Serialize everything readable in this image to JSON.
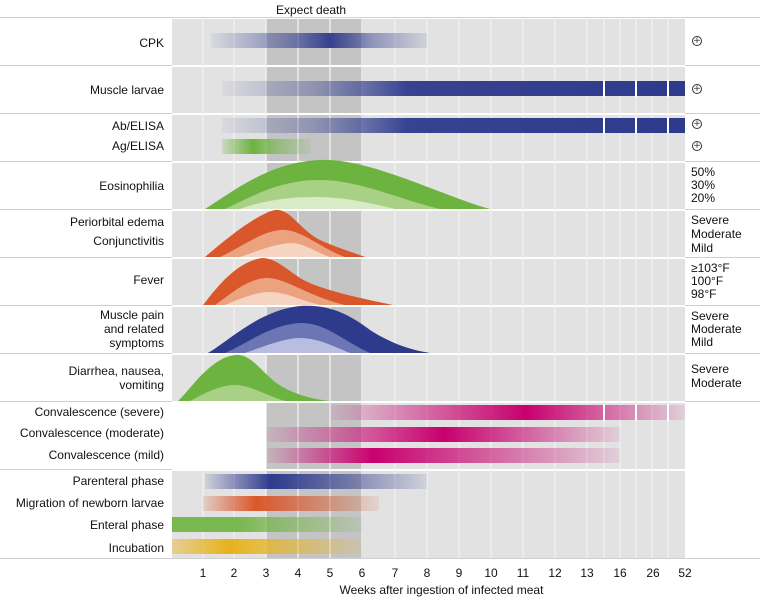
{
  "header": {
    "expect_death": "Expect death"
  },
  "xaxis": {
    "title": "Weeks after ingestion of infected meat",
    "ticks": [
      "1",
      "2",
      "3",
      "4",
      "5",
      "6",
      "7",
      "8",
      "9",
      "10",
      "11",
      "12",
      "13",
      "16",
      "26",
      "52"
    ]
  },
  "rows": {
    "cpk": "CPK",
    "muscle_larvae": "Muscle larvae",
    "ab_elisa": "Ab/ELISA",
    "ag_elisa": "Ag/ELISA",
    "eosinophilia": "Eosinophilia",
    "periorbital": "Periorbital edema",
    "conjunctivitis": "Conjunctivitis",
    "fever": "Fever",
    "muscle_pain_1": "Muscle pain",
    "muscle_pain_2": "and related",
    "muscle_pain_3": "symptoms",
    "diarrhea_1": "Diarrhea, nausea,",
    "diarrhea_2": "vomiting",
    "conv_severe": "Convalescence (severe)",
    "conv_moderate": "Convalescence (moderate)",
    "conv_mild": "Convalescence (mild)",
    "parenteral": "Parenteral phase",
    "migration": "Migration of newborn larvae",
    "enteral": "Enteral phase",
    "incubation": "Incubation"
  },
  "legend": {
    "eos": [
      "50%",
      "30%",
      "20%"
    ],
    "edema": [
      "Severe",
      "Moderate",
      "Mild"
    ],
    "fever": [
      "≥103°F",
      "100°F",
      "98°F"
    ],
    "pain": [
      "Severe",
      "Moderate",
      "Mild"
    ],
    "diarrhea": [
      "Severe",
      "Moderate"
    ]
  },
  "plus_symbol": "+",
  "colors": {
    "blue": "#2e3a8c",
    "green": "#6db33f",
    "orange": "#d9572b",
    "magenta": "#c8006e",
    "yellow": "#e8b21c",
    "band_light": "#e2e2e2",
    "band_dark": "#c4c4c4"
  }
}
